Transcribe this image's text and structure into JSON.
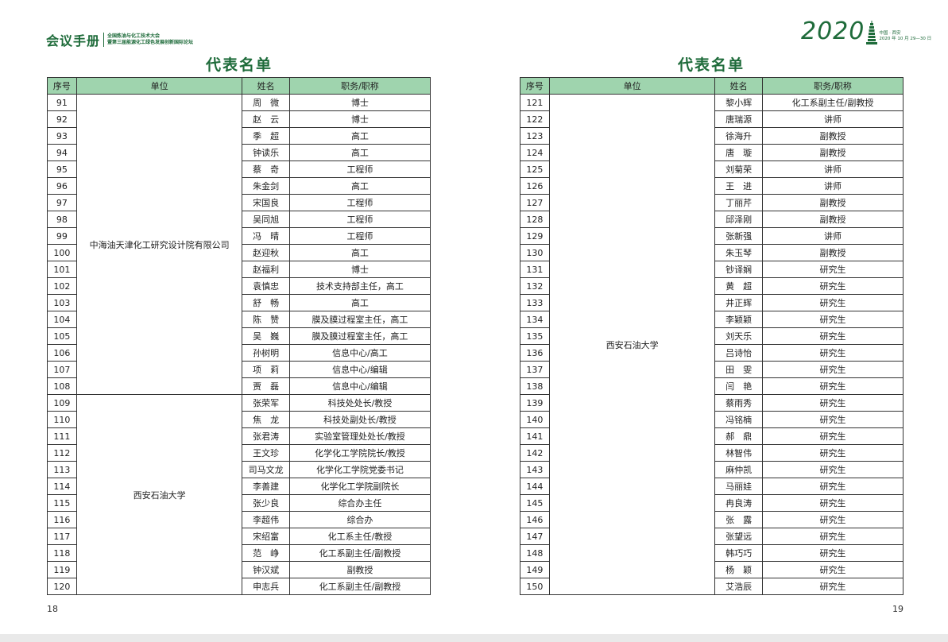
{
  "header": {
    "brand": "会议手册",
    "subtitle_line1": "全国炼油与化工技术大会",
    "subtitle_line2": "暨第三届能源化工绿色发展创新国际论坛",
    "year": "2020",
    "location": "中国 · 西安",
    "date": "2020 年 10 月 29—30 日",
    "accent_color": "#1e6b3a",
    "header_fill": "#9fd4ae"
  },
  "columns": [
    "序号",
    "单位",
    "姓名",
    "职务/职称"
  ],
  "pages": [
    {
      "title": "代表名单",
      "page_number": "18",
      "units": [
        {
          "name": "中海油天津化工研究设计院有限公司",
          "rows": [
            [
              "91",
              "周　微",
              "博士"
            ],
            [
              "92",
              "赵　云",
              "博士"
            ],
            [
              "93",
              "季　超",
              "高工"
            ],
            [
              "94",
              "钟读乐",
              "高工"
            ],
            [
              "95",
              "蔡　奇",
              "工程师"
            ],
            [
              "96",
              "朱金剑",
              "高工"
            ],
            [
              "97",
              "宋国良",
              "工程师"
            ],
            [
              "98",
              "吴同旭",
              "工程师"
            ],
            [
              "99",
              "冯　晴",
              "工程师"
            ],
            [
              "100",
              "赵迎秋",
              "高工"
            ],
            [
              "101",
              "赵福利",
              "博士"
            ],
            [
              "102",
              "袁慎忠",
              "技术支持部主任，高工"
            ],
            [
              "103",
              "舒　畅",
              "高工"
            ],
            [
              "104",
              "陈　赞",
              "膜及膜过程室主任，高工"
            ],
            [
              "105",
              "吴　巍",
              "膜及膜过程室主任，高工"
            ],
            [
              "106",
              "孙树明",
              "信息中心/高工"
            ],
            [
              "107",
              "项　莉",
              "信息中心/编辑"
            ],
            [
              "108",
              "贾　磊",
              "信息中心/编辑"
            ]
          ]
        },
        {
          "name": "西安石油大学",
          "rows": [
            [
              "109",
              "张荣军",
              "科技处处长/教授"
            ],
            [
              "110",
              "焦　龙",
              "科技处副处长/教授"
            ],
            [
              "111",
              "张君涛",
              "实验室管理处处长/教授"
            ],
            [
              "112",
              "王文珍",
              "化学化工学院院长/教授"
            ],
            [
              "113",
              "司马文龙",
              "化学化工学院党委书记"
            ],
            [
              "114",
              "李善建",
              "化学化工学院副院长"
            ],
            [
              "115",
              "张少良",
              "综合办主任"
            ],
            [
              "116",
              "李超伟",
              "综合办"
            ],
            [
              "117",
              "宋绍富",
              "化工系主任/教授"
            ],
            [
              "118",
              "范　峥",
              "化工系副主任/副教授"
            ],
            [
              "119",
              "钟汉斌",
              "副教授"
            ],
            [
              "120",
              "申志兵",
              "化工系副主任/副教授"
            ]
          ]
        }
      ]
    },
    {
      "title": "代表名单",
      "page_number": "19",
      "units": [
        {
          "name": "西安石油大学",
          "rows": [
            [
              "121",
              "黎小辉",
              "化工系副主任/副教授"
            ],
            [
              "122",
              "唐瑞源",
              "讲师"
            ],
            [
              "123",
              "徐海升",
              "副教授"
            ],
            [
              "124",
              "唐　璇",
              "副教授"
            ],
            [
              "125",
              "刘菊荣",
              "讲师"
            ],
            [
              "126",
              "王　进",
              "讲师"
            ],
            [
              "127",
              "丁丽芹",
              "副教授"
            ],
            [
              "128",
              "邱泽刚",
              "副教授"
            ],
            [
              "129",
              "张新强",
              "讲师"
            ],
            [
              "130",
              "朱玉琴",
              "副教授"
            ],
            [
              "131",
              "钞译娴",
              "研究生"
            ],
            [
              "132",
              "黄　超",
              "研究生"
            ],
            [
              "133",
              "井正辉",
              "研究生"
            ],
            [
              "134",
              "李颖颖",
              "研究生"
            ],
            [
              "135",
              "刘天乐",
              "研究生"
            ],
            [
              "136",
              "吕诗怡",
              "研究生"
            ],
            [
              "137",
              "田　雯",
              "研究生"
            ],
            [
              "138",
              "闫　艳",
              "研究生"
            ],
            [
              "139",
              "蔡雨秀",
              "研究生"
            ],
            [
              "140",
              "冯铭楠",
              "研究生"
            ],
            [
              "141",
              "郝　鼎",
              "研究生"
            ],
            [
              "142",
              "林智伟",
              "研究生"
            ],
            [
              "143",
              "麻仲凯",
              "研究生"
            ],
            [
              "144",
              "马丽娃",
              "研究生"
            ],
            [
              "145",
              "冉良涛",
              "研究生"
            ],
            [
              "146",
              "张　露",
              "研究生"
            ],
            [
              "147",
              "张望远",
              "研究生"
            ],
            [
              "148",
              "韩巧巧",
              "研究生"
            ],
            [
              "149",
              "杨　颖",
              "研究生"
            ],
            [
              "150",
              "艾浩辰",
              "研究生"
            ]
          ]
        }
      ]
    }
  ]
}
